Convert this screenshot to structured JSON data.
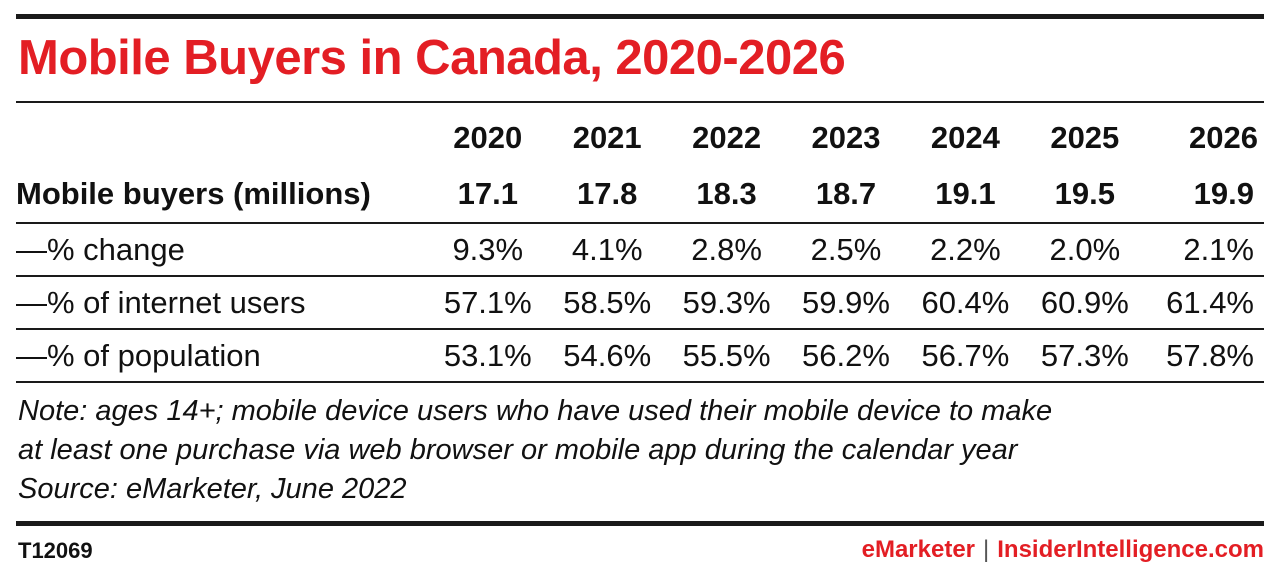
{
  "title": "Mobile Buyers in Canada, 2020-2026",
  "colors": {
    "title": "#e31e24",
    "rules": "#1a1a1a",
    "brand": "#e31e24"
  },
  "chart_data": {
    "type": "table",
    "title": "Mobile Buyers in Canada, 2020-2026",
    "columns": [
      "2020",
      "2021",
      "2022",
      "2023",
      "2024",
      "2025",
      "2026"
    ],
    "rows": [
      {
        "label": "Mobile buyers (millions)",
        "values": [
          "17.1",
          "17.8",
          "18.3",
          "18.7",
          "19.1",
          "19.5",
          "19.9"
        ]
      },
      {
        "label": "—% change",
        "values": [
          "9.3%",
          "4.1%",
          "2.8%",
          "2.5%",
          "2.2%",
          "2.0%",
          "2.1%"
        ]
      },
      {
        "label": "—% of internet users",
        "values": [
          "57.1%",
          "58.5%",
          "59.3%",
          "59.9%",
          "60.4%",
          "60.9%",
          "61.4%"
        ]
      },
      {
        "label": "—% of population",
        "values": [
          "53.1%",
          "54.6%",
          "55.5%",
          "56.2%",
          "56.7%",
          "57.3%",
          "57.8%"
        ]
      }
    ]
  },
  "note": {
    "line1": "Note: ages 14+; mobile device users who have used their mobile device to make",
    "line2": "at least one purchase via web browser or mobile app during the calendar year",
    "line3": "Source: eMarketer, June 2022"
  },
  "footer": {
    "id": "T12069",
    "brand_left": "eMarketer",
    "separator": "|",
    "brand_right": "InsiderIntelligence.com"
  }
}
